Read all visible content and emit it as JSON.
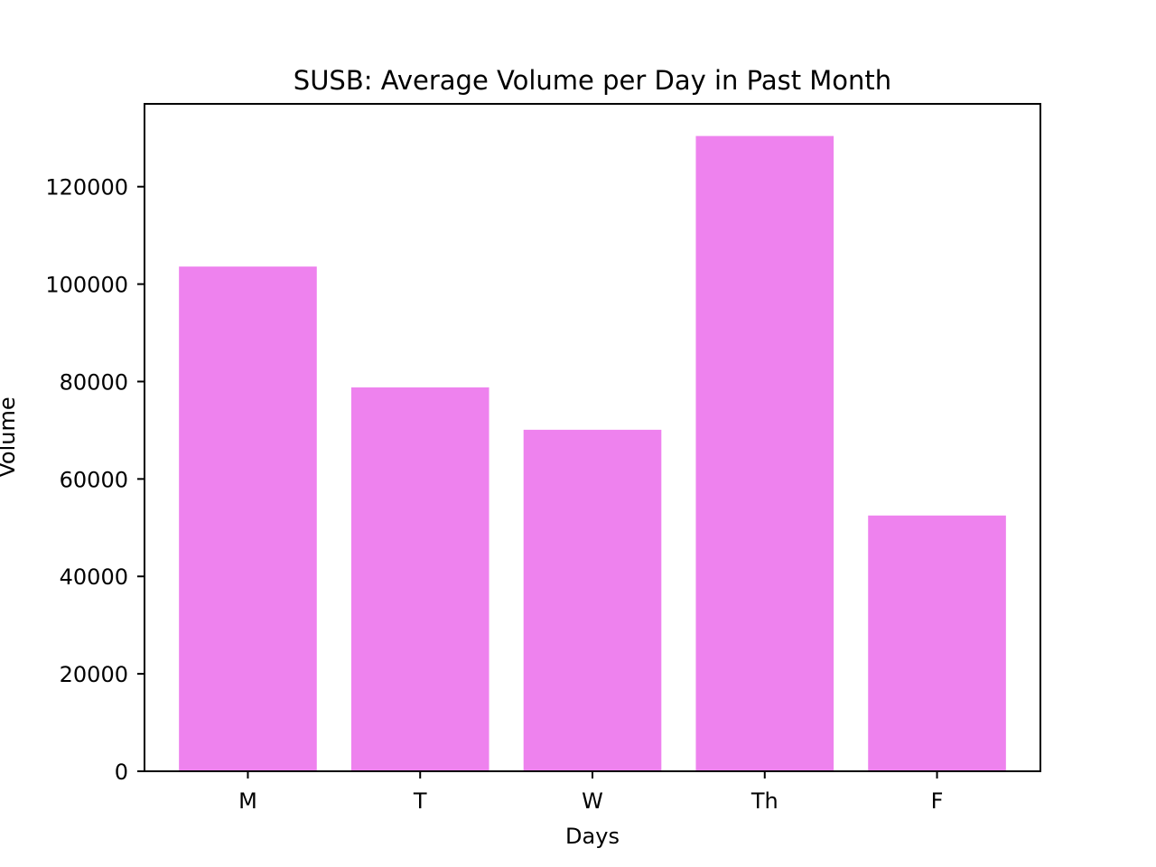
{
  "chart_data": {
    "type": "bar",
    "title": "SUSB: Average Volume per Day in Past Month",
    "xlabel": "Days",
    "ylabel": "Volume",
    "categories": [
      "M",
      "T",
      "W",
      "Th",
      "F"
    ],
    "values": [
      103600,
      78800,
      70100,
      130400,
      52500
    ],
    "ylim": [
      0,
      137000
    ],
    "yticks": [
      0,
      20000,
      40000,
      60000,
      80000,
      100000,
      120000
    ],
    "bar_color": "#ee82ee",
    "grid": false,
    "legend": "none"
  }
}
